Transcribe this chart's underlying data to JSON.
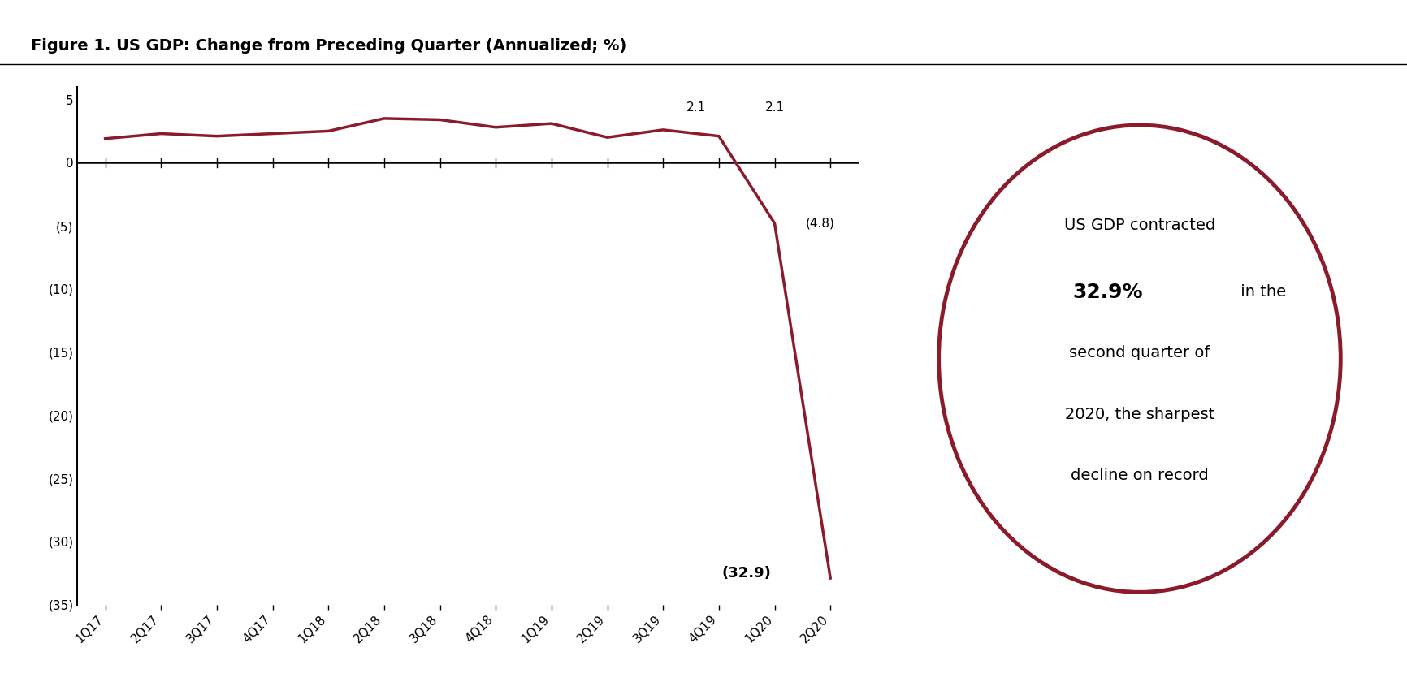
{
  "title": "Figure 1. US GDP: Change from Preceding Quarter (Annualized; %)",
  "categories": [
    "1Q17",
    "2Q17",
    "3Q17",
    "4Q17",
    "1Q18",
    "2Q18",
    "3Q18",
    "4Q18",
    "1Q19",
    "2Q19",
    "3Q19",
    "4Q19",
    "1Q20",
    "2Q20"
  ],
  "values": [
    1.9,
    2.3,
    2.1,
    2.3,
    2.5,
    3.5,
    3.4,
    2.8,
    3.1,
    2.0,
    2.6,
    2.1,
    -4.8,
    -32.9
  ],
  "line_color": "#8B1A2B",
  "line_width": 2.5,
  "ylim": [
    -35,
    6
  ],
  "yticks": [
    5,
    0,
    -5,
    -10,
    -15,
    -20,
    -25,
    -30,
    -35
  ],
  "ytick_labels": [
    "5",
    "0",
    "(5)",
    "(10)",
    "(15)",
    "(20)",
    "(25)",
    "(30)",
    "(35)"
  ],
  "circle_color": "#8B1A2B",
  "background_color": "#FFFFFF",
  "title_fontsize": 14,
  "tick_fontsize": 11,
  "annotation_fontsize": 11
}
